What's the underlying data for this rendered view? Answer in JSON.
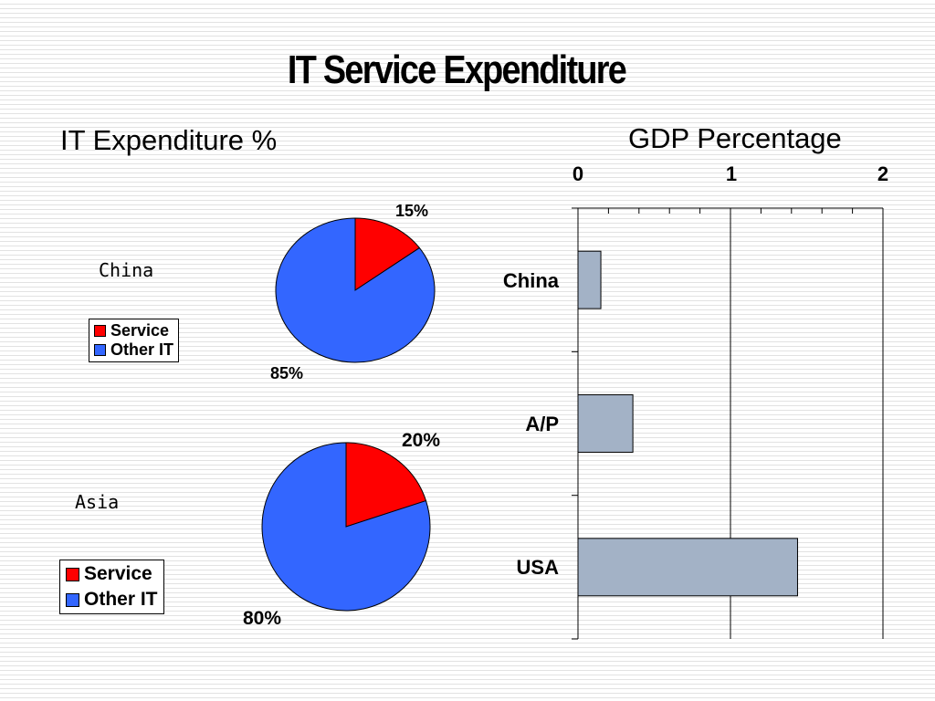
{
  "title": "IT Service Expenditure",
  "left_heading": "IT Expenditure %",
  "right_heading": "GDP Percentage",
  "colors": {
    "service": "#ff0000",
    "other": "#3366ff",
    "bar": "#a3b2c6"
  },
  "chart_data": [
    {
      "type": "pie",
      "title": "China",
      "slices": [
        {
          "name": "Service",
          "value": 15,
          "label": "15%"
        },
        {
          "name": "Other IT",
          "value": 85,
          "label": "85%"
        }
      ],
      "legend": [
        "Service",
        "Other IT"
      ]
    },
    {
      "type": "pie",
      "title": "Asia",
      "slices": [
        {
          "name": "Service",
          "value": 20,
          "label": "20%"
        },
        {
          "name": "Other IT",
          "value": 80,
          "label": "80%"
        }
      ],
      "legend": [
        "Service",
        "Other IT"
      ]
    },
    {
      "type": "bar",
      "orientation": "horizontal",
      "title": "GDP Percentage",
      "categories": [
        "China",
        "A/P",
        "USA"
      ],
      "values": [
        0.15,
        0.36,
        1.44
      ],
      "xlim": [
        0,
        2
      ],
      "xticks": [
        "0",
        "1",
        "2"
      ],
      "axis_position": "top",
      "grid": true
    }
  ]
}
